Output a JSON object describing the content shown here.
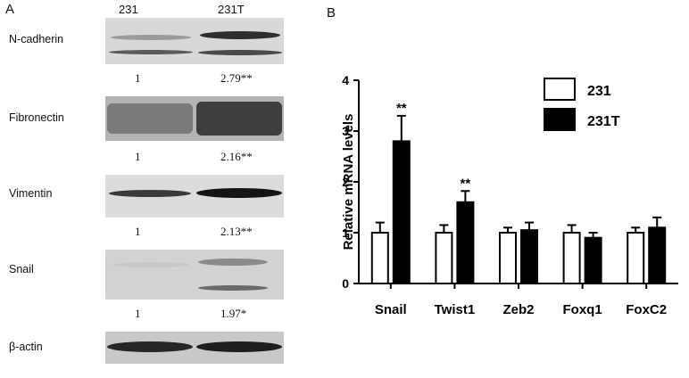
{
  "panel_a": {
    "letter": "A",
    "lanes": [
      "231",
      "231T"
    ],
    "blots": [
      {
        "label": "N-cadherin",
        "quant": [
          "1",
          "2.79**"
        ]
      },
      {
        "label": "Fibronectin",
        "quant": [
          "1",
          "2.16**"
        ]
      },
      {
        "label": "Vimentin",
        "quant": [
          "1",
          "2.13**"
        ]
      },
      {
        "label": "Snail",
        "quant": [
          "1",
          "1.97*"
        ]
      },
      {
        "label": "β-actin"
      }
    ]
  },
  "panel_b": {
    "letter": "B"
  },
  "chart_data": {
    "type": "bar",
    "title": "",
    "xlabel": "",
    "ylabel": "Relative mRNA levels",
    "ylim": [
      0,
      4
    ],
    "yticks": [
      "0",
      "1",
      "2",
      "3",
      "4"
    ],
    "categories": [
      "Snail",
      "Twist1",
      "Zeb2",
      "Foxq1",
      "FoxC2"
    ],
    "series": [
      {
        "name": "231",
        "color": "#ffffff",
        "values": [
          1.0,
          1.0,
          1.0,
          1.0,
          1.0
        ],
        "errors": [
          0.2,
          0.15,
          0.1,
          0.15,
          0.1
        ]
      },
      {
        "name": "231T",
        "color": "#000000",
        "values": [
          2.8,
          1.6,
          1.05,
          0.9,
          1.1
        ],
        "errors": [
          0.5,
          0.22,
          0.15,
          0.1,
          0.2
        ]
      }
    ],
    "annotations": [
      {
        "category": "Snail",
        "series": "231T",
        "text": "**"
      },
      {
        "category": "Twist1",
        "series": "231T",
        "text": "**"
      }
    ],
    "legend": "top-right",
    "grid": false
  }
}
